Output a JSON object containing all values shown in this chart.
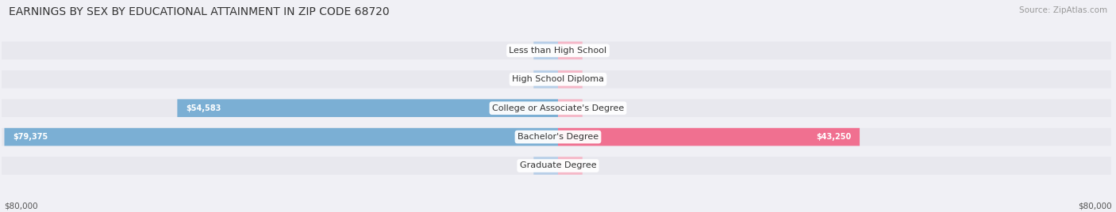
{
  "title": "EARNINGS BY SEX BY EDUCATIONAL ATTAINMENT IN ZIP CODE 68720",
  "source": "Source: ZipAtlas.com",
  "categories": [
    "Less than High School",
    "High School Diploma",
    "College or Associate's Degree",
    "Bachelor's Degree",
    "Graduate Degree"
  ],
  "male_values": [
    0,
    0,
    54583,
    79375,
    0
  ],
  "female_values": [
    0,
    0,
    0,
    43250,
    0
  ],
  "male_color": "#7bafd4",
  "female_color": "#f07090",
  "male_zero_color": "#b8cfe8",
  "female_zero_color": "#f5b8c8",
  "bar_bg_color": "#e8e8ee",
  "row_bg_color": "#f0f0f5",
  "axis_max": 80000,
  "zero_stub": 3500,
  "bottom_label_left": "$80,000",
  "bottom_label_right": "$80,000",
  "title_fontsize": 10,
  "source_fontsize": 7.5,
  "label_fontsize": 7,
  "cat_fontsize": 8,
  "bar_height": 0.62,
  "background_color": "#f0f0f5"
}
